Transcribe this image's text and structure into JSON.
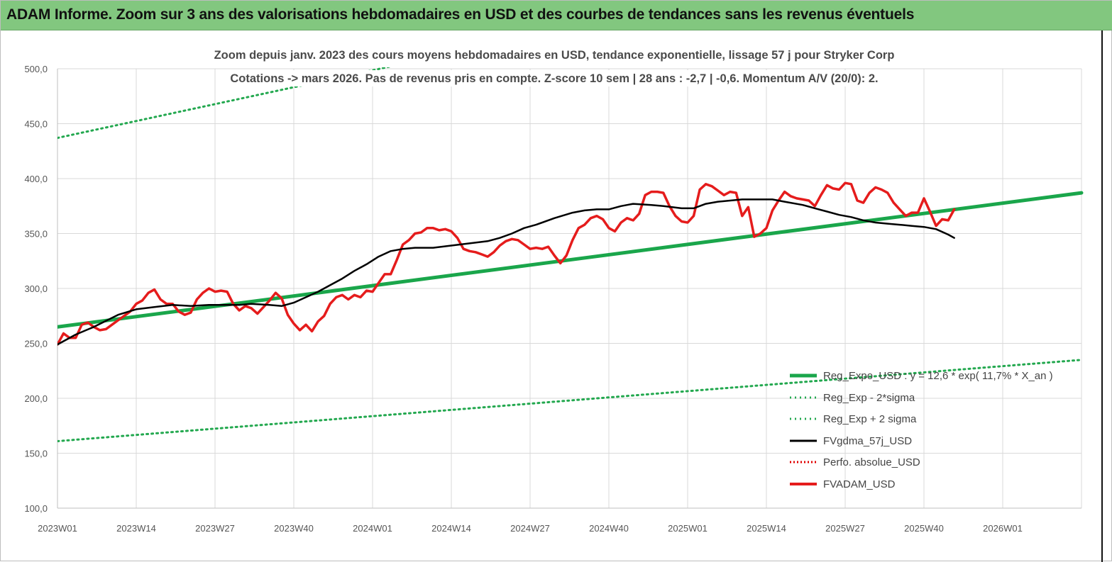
{
  "banner": {
    "title": "ADAM Informe. Zoom sur 3 ans des valorisations hebdomadaires en USD et des courbes de tendances sans les revenus éventuels"
  },
  "colors": {
    "banner_bg": "#82c77f",
    "reg_expo": "#1aa64b",
    "sigma": "#23a84f",
    "fvgdma": "#000000",
    "perfo": "#e00000",
    "fvadam": "#e51c1c",
    "grid": "#d9d9d9"
  },
  "chart_data": {
    "type": "line",
    "title_lines": [
      "Zoom depuis janv. 2023 des cours moyens hebdomadaires en USD, tendance exponentielle, lissage 57 j pour Stryker Corp",
      "Cotations -> mars 2026. Pas de revenus pris en compte. Z-score 10 sem  | 28 ans : -2,7 | -0,6. Momentum A/V (20/0): 2."
    ],
    "ylim": [
      100,
      500
    ],
    "y_ticks": [
      "100,0",
      "150,0",
      "200,0",
      "250,0",
      "300,0",
      "350,0",
      "400,0",
      "450,0",
      "500,0"
    ],
    "x_ticks": [
      "2023W01",
      "2023W14",
      "2023W27",
      "2023W40",
      "2024W01",
      "2024W14",
      "2024W27",
      "2024W40",
      "2025W01",
      "2025W14",
      "2025W27",
      "2025W40",
      "2026W01"
    ],
    "n_weeks": 170,
    "grid": "vertical and horizontal",
    "legend_position": "bottom-right",
    "series": [
      {
        "name": "Reg_Expo_USD : y = 12,6 * exp( 11,7% * X_an )",
        "style": "solid-thick",
        "points": [
          [
            0,
            265
          ],
          [
            169,
            387
          ]
        ]
      },
      {
        "name": "Reg_Exp - 2*sigma",
        "style": "dotted",
        "points": [
          [
            0,
            161
          ],
          [
            169,
            235
          ]
        ]
      },
      {
        "name": "Reg_Exp + 2 sigma",
        "style": "dotted",
        "points": [
          [
            0,
            437
          ],
          [
            169,
            637
          ]
        ]
      },
      {
        "name": "FVgdma_57j_USD",
        "style": "solid",
        "points": [
          [
            0,
            249
          ],
          [
            6,
            258
          ],
          [
            12,
            265
          ],
          [
            20,
            276
          ],
          [
            26,
            281
          ],
          [
            32,
            283
          ],
          [
            38,
            285
          ],
          [
            44,
            284
          ],
          [
            50,
            285
          ],
          [
            56,
            285
          ],
          [
            60,
            285
          ],
          [
            64,
            286
          ],
          [
            70,
            285
          ],
          [
            74,
            284
          ],
          [
            78,
            287
          ],
          [
            82,
            292
          ],
          [
            86,
            297
          ],
          [
            90,
            303
          ],
          [
            94,
            309
          ],
          [
            98,
            316
          ],
          [
            102,
            322
          ],
          [
            106,
            329
          ],
          [
            110,
            334
          ],
          [
            114,
            336
          ],
          [
            118,
            337
          ],
          [
            124,
            337
          ],
          [
            130,
            339
          ],
          [
            136,
            341
          ],
          [
            142,
            343
          ],
          [
            146,
            346
          ],
          [
            150,
            350
          ],
          [
            154,
            355
          ],
          [
            158,
            358
          ],
          [
            164,
            364
          ],
          [
            170,
            369
          ],
          [
            174,
            371
          ],
          [
            178,
            372
          ],
          [
            182,
            372
          ],
          [
            186,
            375
          ],
          [
            190,
            377
          ],
          [
            196,
            376
          ],
          [
            200,
            375
          ],
          [
            206,
            373
          ],
          [
            210,
            373
          ],
          [
            214,
            377
          ],
          [
            218,
            379
          ],
          [
            222,
            380
          ],
          [
            226,
            381
          ],
          [
            232,
            381
          ],
          [
            236,
            381
          ],
          [
            240,
            379
          ],
          [
            246,
            376
          ],
          [
            250,
            373
          ],
          [
            254,
            370
          ],
          [
            258,
            367
          ],
          [
            262,
            365
          ],
          [
            266,
            362
          ],
          [
            270,
            360
          ],
          [
            274,
            359
          ],
          [
            278,
            358
          ],
          [
            282,
            357
          ],
          [
            286,
            356
          ],
          [
            290,
            354
          ],
          [
            294,
            349
          ],
          [
            296,
            346
          ]
        ]
      },
      {
        "name": "Perfo. absolue_USD",
        "style": "dotted",
        "points": []
      },
      {
        "name": "FVADAM_USD",
        "style": "solid-thick",
        "points": [
          [
            0,
            249
          ],
          [
            2,
            259
          ],
          [
            4,
            255
          ],
          [
            6,
            255
          ],
          [
            8,
            267
          ],
          [
            10,
            269
          ],
          [
            12,
            265
          ],
          [
            14,
            262
          ],
          [
            16,
            263
          ],
          [
            18,
            267
          ],
          [
            20,
            271
          ],
          [
            22,
            275
          ],
          [
            24,
            279
          ],
          [
            26,
            286
          ],
          [
            28,
            289
          ],
          [
            30,
            296
          ],
          [
            32,
            299
          ],
          [
            34,
            290
          ],
          [
            36,
            286
          ],
          [
            38,
            286
          ],
          [
            40,
            279
          ],
          [
            42,
            276
          ],
          [
            44,
            278
          ],
          [
            46,
            290
          ],
          [
            48,
            296
          ],
          [
            50,
            300
          ],
          [
            52,
            297
          ],
          [
            54,
            298
          ],
          [
            56,
            297
          ],
          [
            58,
            286
          ],
          [
            60,
            280
          ],
          [
            62,
            284
          ],
          [
            64,
            282
          ],
          [
            66,
            277
          ],
          [
            68,
            283
          ],
          [
            70,
            289
          ],
          [
            72,
            296
          ],
          [
            74,
            291
          ],
          [
            76,
            276
          ],
          [
            78,
            268
          ],
          [
            80,
            262
          ],
          [
            82,
            267
          ],
          [
            84,
            261
          ],
          [
            86,
            270
          ],
          [
            88,
            275
          ],
          [
            90,
            286
          ],
          [
            92,
            292
          ],
          [
            94,
            294
          ],
          [
            96,
            290
          ],
          [
            98,
            294
          ],
          [
            100,
            292
          ],
          [
            102,
            298
          ],
          [
            104,
            297
          ],
          [
            106,
            305
          ],
          [
            108,
            313
          ],
          [
            110,
            313
          ],
          [
            112,
            326
          ],
          [
            114,
            340
          ],
          [
            116,
            344
          ],
          [
            118,
            350
          ],
          [
            120,
            351
          ],
          [
            122,
            355
          ],
          [
            124,
            355
          ],
          [
            126,
            353
          ],
          [
            128,
            354
          ],
          [
            130,
            352
          ],
          [
            132,
            346
          ],
          [
            134,
            336
          ],
          [
            136,
            334
          ],
          [
            138,
            333
          ],
          [
            140,
            331
          ],
          [
            142,
            329
          ],
          [
            144,
            333
          ],
          [
            146,
            339
          ],
          [
            148,
            343
          ],
          [
            150,
            345
          ],
          [
            152,
            344
          ],
          [
            154,
            340
          ],
          [
            156,
            336
          ],
          [
            158,
            337
          ],
          [
            160,
            336
          ],
          [
            162,
            338
          ],
          [
            164,
            330
          ],
          [
            166,
            323
          ],
          [
            168,
            330
          ],
          [
            170,
            344
          ],
          [
            172,
            355
          ],
          [
            174,
            358
          ],
          [
            176,
            364
          ],
          [
            178,
            366
          ],
          [
            180,
            363
          ],
          [
            182,
            355
          ],
          [
            184,
            352
          ],
          [
            186,
            360
          ],
          [
            188,
            364
          ],
          [
            190,
            362
          ],
          [
            192,
            368
          ],
          [
            194,
            385
          ],
          [
            196,
            388
          ],
          [
            198,
            388
          ],
          [
            200,
            387
          ],
          [
            202,
            375
          ],
          [
            204,
            366
          ],
          [
            206,
            361
          ],
          [
            208,
            360
          ],
          [
            210,
            366
          ],
          [
            212,
            390
          ],
          [
            214,
            395
          ],
          [
            216,
            393
          ],
          [
            218,
            389
          ],
          [
            220,
            385
          ],
          [
            222,
            388
          ],
          [
            224,
            387
          ],
          [
            226,
            366
          ],
          [
            228,
            374
          ],
          [
            230,
            347
          ],
          [
            232,
            350
          ],
          [
            234,
            355
          ],
          [
            236,
            371
          ],
          [
            238,
            380
          ],
          [
            240,
            388
          ],
          [
            242,
            384
          ],
          [
            244,
            382
          ],
          [
            246,
            381
          ],
          [
            248,
            380
          ],
          [
            250,
            375
          ],
          [
            252,
            385
          ],
          [
            254,
            394
          ],
          [
            256,
            391
          ],
          [
            258,
            390
          ],
          [
            260,
            396
          ],
          [
            262,
            395
          ],
          [
            264,
            380
          ],
          [
            266,
            378
          ],
          [
            268,
            387
          ],
          [
            270,
            392
          ],
          [
            272,
            390
          ],
          [
            274,
            387
          ],
          [
            276,
            378
          ],
          [
            278,
            372
          ],
          [
            280,
            366
          ],
          [
            282,
            369
          ],
          [
            284,
            369
          ],
          [
            286,
            382
          ],
          [
            288,
            370
          ],
          [
            290,
            357
          ],
          [
            292,
            363
          ],
          [
            294,
            362
          ],
          [
            296,
            372
          ]
        ]
      }
    ]
  }
}
